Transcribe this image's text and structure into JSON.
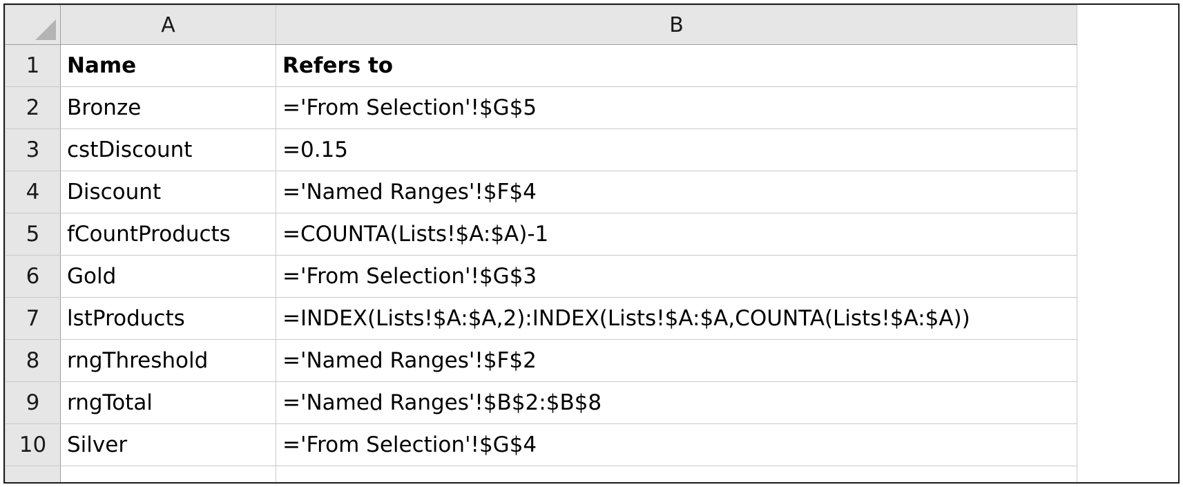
{
  "columns": [
    "A",
    "B"
  ],
  "rows": [
    {
      "num": "1",
      "a": "Name",
      "b": "Refers to",
      "header": true
    },
    {
      "num": "2",
      "a": "Bronze",
      "b": "='From Selection'!$G$5"
    },
    {
      "num": "3",
      "a": "cstDiscount",
      "b": "=0.15"
    },
    {
      "num": "4",
      "a": "Discount",
      "b": "='Named Ranges'!$F$4"
    },
    {
      "num": "5",
      "a": "fCountProducts",
      "b": "=COUNTA(Lists!$A:$A)-1"
    },
    {
      "num": "6",
      "a": "Gold",
      "b": "='From Selection'!$G$3"
    },
    {
      "num": "7",
      "a": "lstProducts",
      "b": "=INDEX(Lists!$A:$A,2):INDEX(Lists!$A:$A,COUNTA(Lists!$A:$A))"
    },
    {
      "num": "8",
      "a": "rngThreshold",
      "b": "='Named Ranges'!$F$2"
    },
    {
      "num": "9",
      "a": "rngTotal",
      "b": "='Named Ranges'!$B$2:$B$8"
    },
    {
      "num": "10",
      "a": "Silver",
      "b": "='From Selection'!$G$4"
    }
  ]
}
